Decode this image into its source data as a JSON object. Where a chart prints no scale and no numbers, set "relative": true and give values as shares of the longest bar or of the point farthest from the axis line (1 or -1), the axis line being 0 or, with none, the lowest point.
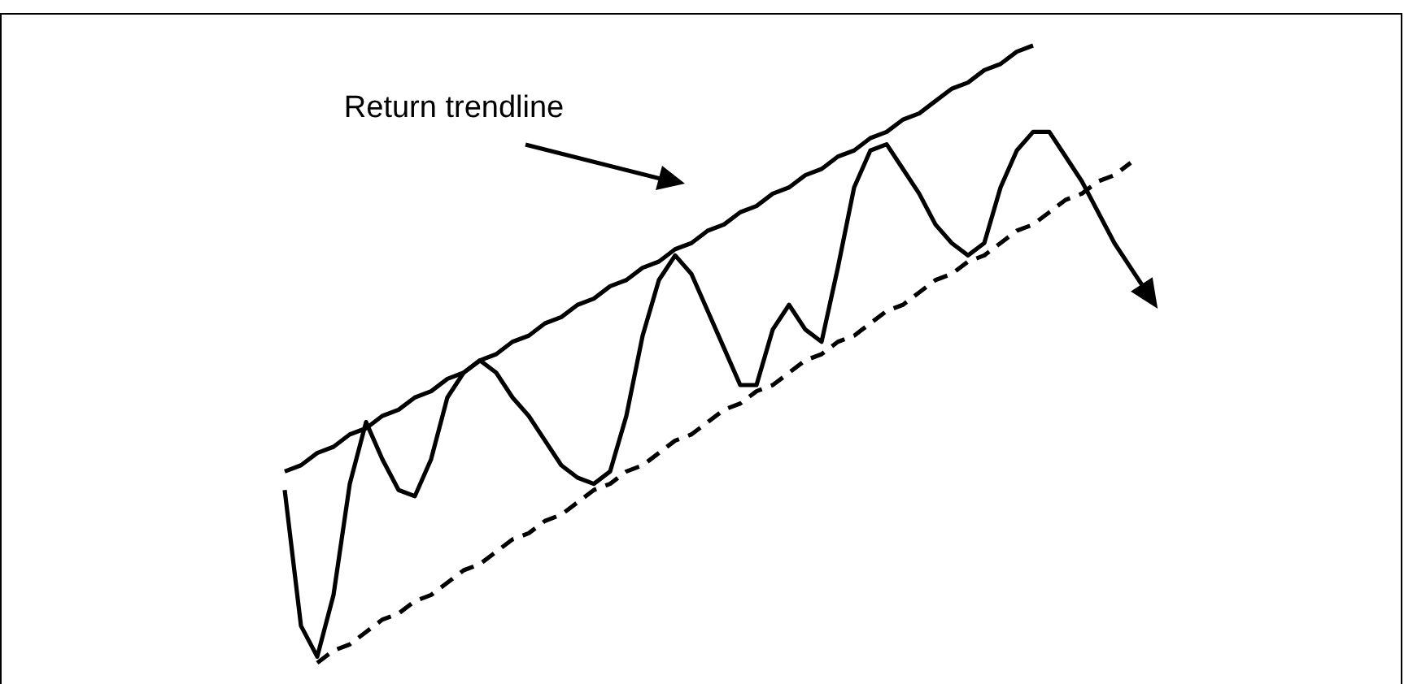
{
  "chart_data": {
    "type": "line",
    "relative": true,
    "marker": "none",
    "annotations": [
      "Return trendline"
    ],
    "categories": [
      null,
      null,
      null,
      null,
      null,
      null,
      null,
      null,
      null,
      null,
      null,
      null,
      null,
      null,
      null,
      null,
      null,
      null,
      null,
      null,
      null,
      null,
      null,
      null,
      null,
      null,
      null,
      null,
      null,
      null,
      null,
      null,
      null,
      null,
      null,
      null,
      null,
      null,
      null,
      null,
      null,
      null,
      null,
      null,
      null,
      null,
      null,
      null,
      null,
      null,
      null,
      null,
      null,
      null
    ],
    "series": [
      {
        "color": "#000000",
        "line_style": "solid",
        "values": [
          0.28,
          0.06,
          0.01,
          0.11,
          0.29,
          0.39,
          0.33,
          0.28,
          0.27,
          0.33,
          0.43,
          0.47,
          0.49,
          0.47,
          0.43,
          0.4,
          0.36,
          0.32,
          0.3,
          0.29,
          0.31,
          0.4,
          0.53,
          0.62,
          0.66,
          0.63,
          0.57,
          0.51,
          0.45,
          0.45,
          0.54,
          0.58,
          0.54,
          0.52,
          0.64,
          0.77,
          0.83,
          0.84,
          0.8,
          0.76,
          0.71,
          0.68,
          0.66,
          0.68,
          0.77,
          0.83,
          0.86,
          0.86,
          0.82,
          0.78,
          0.73,
          0.68,
          0.64,
          0.6
        ]
      },
      {
        "type": "line",
        "color": "#000000",
        "line_style": "solid",
        "values": [
          0.31,
          0.32,
          0.34,
          0.35,
          0.37,
          0.38,
          0.4,
          0.41,
          0.43,
          0.44,
          0.46,
          0.47,
          0.49,
          0.5,
          0.52,
          0.53,
          0.55,
          0.56,
          0.58,
          0.59,
          0.61,
          0.62,
          0.64,
          0.65,
          0.67,
          0.68,
          0.7,
          0.71,
          0.73,
          0.74,
          0.76,
          0.77,
          0.79,
          0.8,
          0.82,
          0.83,
          0.85,
          0.86,
          0.88,
          0.89,
          0.91,
          0.93,
          0.94,
          0.96,
          0.97,
          0.99,
          1.0,
          null,
          null,
          null,
          null,
          null,
          null,
          null
        ]
      },
      {
        "type": "line",
        "color": "#000000",
        "line_style": "dashed",
        "values": [
          null,
          null,
          0.0,
          0.02,
          0.03,
          0.05,
          0.07,
          0.08,
          0.1,
          0.11,
          0.13,
          0.15,
          0.16,
          0.18,
          0.2,
          0.21,
          0.23,
          0.24,
          0.26,
          0.28,
          0.29,
          0.31,
          0.32,
          0.34,
          0.36,
          0.37,
          0.39,
          0.41,
          0.42,
          0.44,
          0.45,
          0.47,
          0.49,
          0.5,
          0.52,
          0.53,
          0.55,
          0.57,
          0.58,
          0.6,
          0.62,
          0.63,
          0.65,
          0.66,
          0.68,
          0.7,
          0.71,
          0.73,
          0.75,
          0.76,
          0.78,
          0.79,
          0.81,
          null
        ]
      }
    ]
  }
}
